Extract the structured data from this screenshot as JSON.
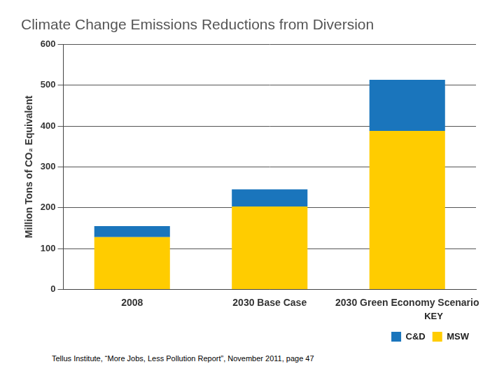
{
  "chart_data": {
    "type": "bar",
    "title": "Climate Change Emissions Reductions from Diversion",
    "y_label": "Million Tons of CO₂ Equivalent",
    "categories": [
      "2008",
      "2030 Base Case",
      "2030 Green Economy Scenario"
    ],
    "series": [
      {
        "name": "MSW",
        "color": "#ffcc00",
        "values": [
          128,
          203,
          388
        ]
      },
      {
        "name": "C&D",
        "color": "#1a75bc",
        "values": [
          27,
          42,
          125
        ]
      }
    ],
    "stacked": true,
    "ylim": [
      0,
      600
    ],
    "yticks": [
      0,
      100,
      200,
      300,
      400,
      500,
      600
    ],
    "grid": true,
    "legend": "bottom right",
    "legend_title": "KEY",
    "annotation": "Tellus Institute, “More Jobs, Less Pollution Report”, November 2011, page 47"
  }
}
